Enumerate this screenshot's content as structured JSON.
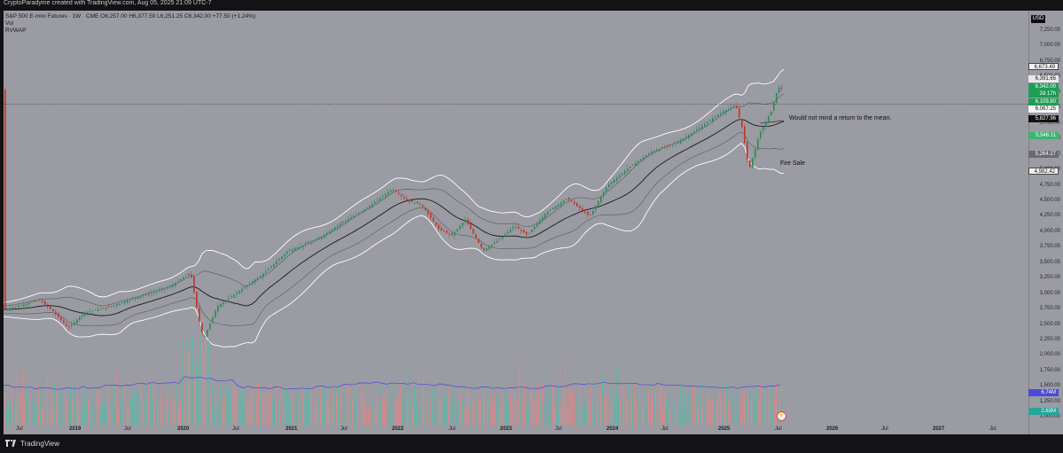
{
  "header": {
    "caption": "CryptoParadyme created with TradingView.com, Aug 05, 2025 21:09 UTC-7"
  },
  "legend": {
    "symbol_line": "S&P 500 E-mini Futures · 1W · CME   O6,257.00  H6,377.50  L6,251.25  C6,342.00  +77.50 (+1.24%)",
    "vol_label": "Vol",
    "rvwap_label": "RVWAP"
  },
  "currency_button": "USD",
  "price_labels": [
    "7,250.00",
    "7,000.00",
    "6,750.00",
    "6,500.00",
    "6,250.00",
    "6,000.00",
    "5,750.00",
    "5,500.00",
    "5,250.00",
    "5,000.00",
    "4,750.00",
    "4,500.00",
    "4,250.00",
    "4,000.00",
    "3,750.00",
    "3,500.00",
    "3,250.00",
    "3,000.00",
    "2,750.00",
    "2,500.00",
    "2,250.00",
    "2,000.00",
    "1,750.00",
    "1,500.00",
    "1,250.00",
    "1,000.00"
  ],
  "badges": {
    "upper_band": "6,673.49",
    "high": "6,391.65",
    "last": "6,342.00",
    "countdown": "2d 17h",
    "vwap_up": "6,109.80",
    "mean_dash": "6,067.25",
    "mean": "5,827.96",
    "green_mid": "5,546.11",
    "lower1": "5,264.27",
    "lower2": "4,982.42",
    "vol_ma": "6.74M",
    "vol": "2.63M"
  },
  "time_labels": [
    "Jul",
    "2019",
    "Jul",
    "2020",
    "Jul",
    "2021",
    "Jul",
    "2022",
    "Jul",
    "2023",
    "Jul",
    "2024",
    "Jul",
    "2025",
    "Jul",
    "2026",
    "Jul",
    "2027",
    "Jul"
  ],
  "annotations": {
    "mean_note": "Would not mind a return to the mean.",
    "fire_sale": "Fire Sale"
  },
  "footer": {
    "brand": "TradingView"
  },
  "colors": {
    "up": "#2e8b57",
    "down": "#c0392b",
    "vol_up": "#5fb6a8",
    "vol_down": "#d98a8a",
    "band_outer": "#ffffff",
    "mean_line": "#1a1a1a",
    "vol_ma": "#4c4cd6"
  }
}
